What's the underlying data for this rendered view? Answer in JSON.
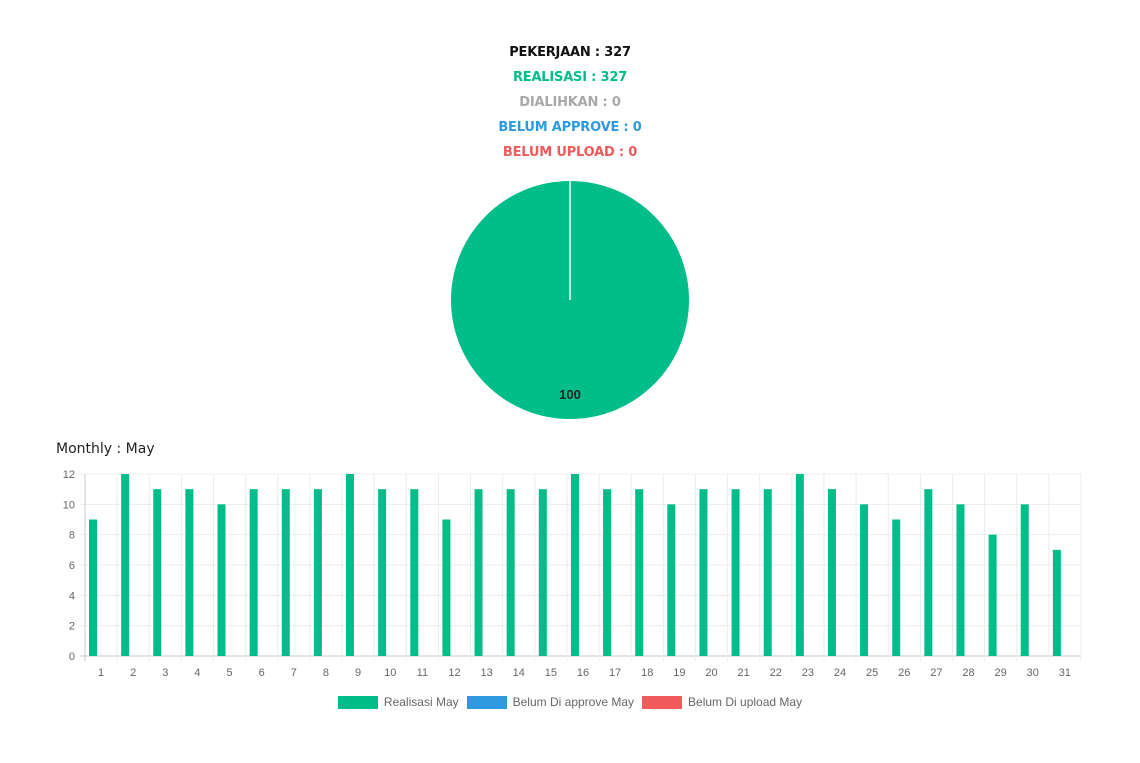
{
  "summary": {
    "pekerjaan": "PEKERJAAN : 327",
    "realisasi": "REALISASI : 327",
    "dialihkan": "DIALIHKAN : 0",
    "belum_approve": "BELUM APPROVE : 0",
    "belum_upload": "BELUM UPLOAD : 0"
  },
  "monthly_title": "Monthly : May",
  "colors": {
    "realisasi": "#00bd8a",
    "belum_approve": "#2d9ae0",
    "belum_upload": "#f05a5a",
    "dialihkan": "#a8a8a8"
  },
  "chart_data": [
    {
      "type": "pie",
      "slices": [
        {
          "label": "Realisasi",
          "value": 100,
          "color": "#00bd8a"
        }
      ],
      "data_labels": [
        "100"
      ]
    },
    {
      "type": "bar",
      "categories": [
        "1",
        "2",
        "3",
        "4",
        "5",
        "6",
        "7",
        "8",
        "9",
        "10",
        "11",
        "12",
        "13",
        "14",
        "15",
        "16",
        "17",
        "18",
        "19",
        "20",
        "21",
        "22",
        "23",
        "24",
        "25",
        "26",
        "27",
        "28",
        "29",
        "30",
        "31"
      ],
      "series": [
        {
          "name": "Realisasi May",
          "color": "#00bd8a",
          "values": [
            9,
            12,
            11,
            11,
            10,
            11,
            11,
            11,
            12,
            11,
            11,
            9,
            11,
            11,
            11,
            12,
            11,
            11,
            10,
            11,
            11,
            11,
            12,
            11,
            10,
            9,
            11,
            10,
            8,
            10,
            7
          ]
        },
        {
          "name": "Belum Di approve May",
          "color": "#2d9ae0",
          "values": [
            0,
            0,
            0,
            0,
            0,
            0,
            0,
            0,
            0,
            0,
            0,
            0,
            0,
            0,
            0,
            0,
            0,
            0,
            0,
            0,
            0,
            0,
            0,
            0,
            0,
            0,
            0,
            0,
            0,
            0,
            0
          ]
        },
        {
          "name": "Belum Di upload May",
          "color": "#f05a5a",
          "values": [
            0,
            0,
            0,
            0,
            0,
            0,
            0,
            0,
            0,
            0,
            0,
            0,
            0,
            0,
            0,
            0,
            0,
            0,
            0,
            0,
            0,
            0,
            0,
            0,
            0,
            0,
            0,
            0,
            0,
            0,
            0
          ]
        }
      ],
      "y_ticks": [
        "0",
        "2",
        "4",
        "6",
        "8",
        "10",
        "12"
      ],
      "ylim": [
        0,
        12
      ],
      "grid": true,
      "legend": "bottom"
    }
  ]
}
